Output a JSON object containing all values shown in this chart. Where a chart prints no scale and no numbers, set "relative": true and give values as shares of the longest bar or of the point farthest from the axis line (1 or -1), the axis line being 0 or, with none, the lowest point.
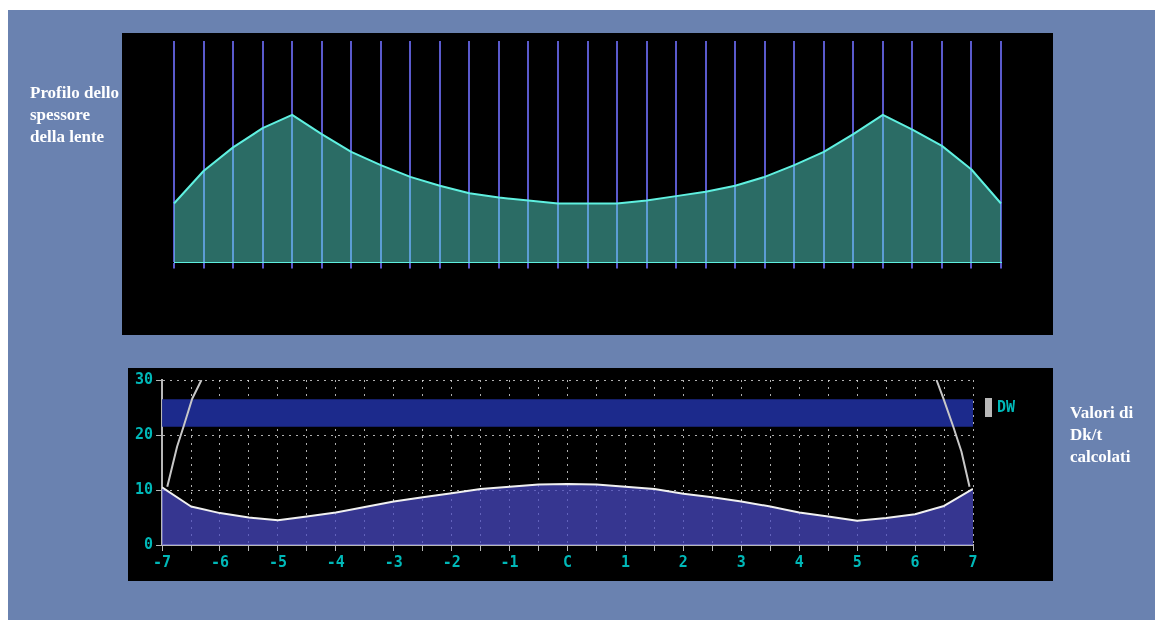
{
  "chart_data": [
    {
      "type": "area",
      "ylabel": "Profilo dello spessore della lente",
      "relative": true,
      "grid": "x",
      "categories": [
        null,
        null,
        null,
        null,
        null,
        null,
        null,
        null,
        null,
        null,
        null,
        null,
        null,
        null,
        null,
        null,
        null,
        null,
        null,
        null,
        null,
        null,
        null,
        null,
        null,
        null,
        null,
        null,
        null
      ],
      "series": [
        {
          "color": "#5ff0e0",
          "values": [
            0.4,
            0.62,
            0.78,
            0.91,
            1,
            0.87,
            0.75,
            0.66,
            0.58,
            0.52,
            0.47,
            0.44,
            0.42,
            0.4,
            0.4,
            0.4,
            0.42,
            0.45,
            0.48,
            0.52,
            0.58,
            0.66,
            0.75,
            0.87,
            1,
            0.9,
            0.79,
            0.63,
            0.4
          ]
        }
      ]
    },
    {
      "type": "area",
      "ylabel": "Valori di Dk/t calcolati",
      "xlim": [
        -7,
        7
      ],
      "ylim": [
        0,
        30
      ],
      "yticks": [
        0,
        10,
        20,
        30
      ],
      "grid": true,
      "xticks": [
        -7,
        {
          "value": -6.5,
          "label": null
        },
        -6,
        {
          "value": -5.5,
          "label": null
        },
        -5,
        {
          "value": -4.5,
          "label": null
        },
        -4,
        {
          "value": -3.5,
          "label": null
        },
        -3,
        {
          "value": -2.5,
          "label": null
        },
        -2,
        {
          "value": -1.5,
          "label": null
        },
        -1,
        {
          "value": -0.5,
          "label": null
        },
        {
          "value": 0,
          "label": "C"
        },
        {
          "value": 0.5,
          "label": null
        },
        1,
        {
          "value": 1.5,
          "label": null
        },
        2,
        {
          "value": 2.5,
          "label": null
        },
        3,
        {
          "value": 3.5,
          "label": null
        },
        4,
        {
          "value": 4.5,
          "label": null
        },
        5,
        {
          "value": 5.5,
          "label": null
        },
        6,
        {
          "value": 6.5,
          "label": null
        },
        7
      ],
      "bands": [
        {
          "axis": "y",
          "from": 21.5,
          "to": 26.5,
          "label": "DW",
          "color": "#1c2a8c"
        }
      ],
      "series": [
        {
          "color": "#4848c0",
          "x": [
            -7,
            -6.5,
            -6,
            -5.5,
            -5,
            -4.5,
            -4,
            -3.5,
            -3,
            -2.5,
            -2,
            -1.5,
            -1,
            -0.5,
            0,
            0.5,
            1,
            1.5,
            2,
            2.5,
            3,
            3.5,
            4,
            4.5,
            5,
            5.5,
            6,
            6.5,
            7
          ],
          "values": [
            10.5,
            7,
            5.8,
            5,
            4.5,
            5.2,
            5.9,
            6.9,
            7.9,
            8.7,
            9.4,
            10.2,
            10.6,
            11,
            11.1,
            11,
            10.6,
            10.2,
            9.3,
            8.7,
            7.9,
            7,
            5.9,
            5.2,
            4.4,
            4.9,
            5.6,
            7.1,
            10.2
          ]
        },
        {
          "type": "line",
          "color": "#c8c8c8",
          "x": [
            -6.91,
            -6.74,
            -6.63,
            -6.48,
            -6.32,
            0,
            6.37,
            6.49,
            6.66,
            6.8,
            6.94
          ],
          "values": [
            10.6,
            17.9,
            21.5,
            26.6,
            30,
            null,
            30,
            26.6,
            21.5,
            17,
            10.6
          ]
        }
      ]
    }
  ]
}
